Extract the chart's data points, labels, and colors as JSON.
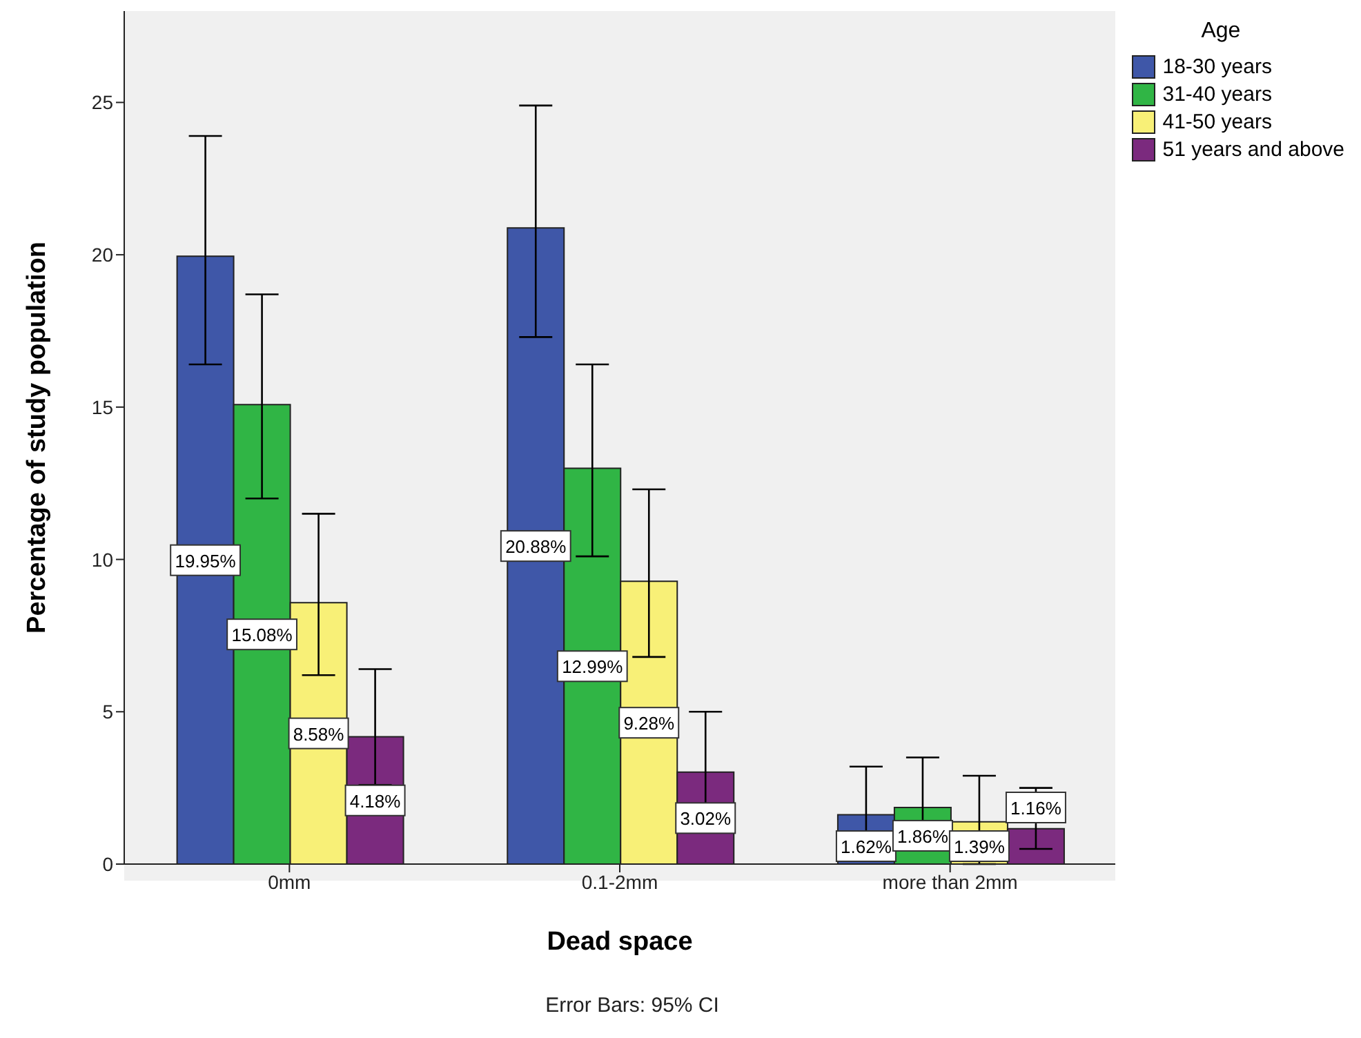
{
  "chart_data": {
    "type": "bar",
    "xlabel": "Dead space",
    "ylabel": "Percentage of study population",
    "legend_title": "Age",
    "categories": [
      "0mm",
      "0.1-2mm",
      "more than 2mm"
    ],
    "series": [
      {
        "name": "18-30 years",
        "color": "#3f57a8",
        "values": [
          19.95,
          20.88,
          1.62
        ],
        "value_labels": [
          "19.95%",
          "20.88%",
          "1.62%"
        ],
        "errors": [
          [
            16.4,
            23.9
          ],
          [
            17.3,
            24.9
          ],
          [
            0.1,
            3.2
          ]
        ]
      },
      {
        "name": "31-40 years",
        "color": "#30b545",
        "values": [
          15.08,
          12.99,
          1.86
        ],
        "value_labels": [
          "15.08%",
          "12.99%",
          "1.86%"
        ],
        "errors": [
          [
            12.0,
            18.7
          ],
          [
            10.1,
            16.4
          ],
          [
            0.9,
            3.5
          ]
        ]
      },
      {
        "name": "41-50 years",
        "color": "#f8f077",
        "values": [
          8.58,
          9.28,
          1.39
        ],
        "value_labels": [
          "8.58%",
          "9.28%",
          "1.39%"
        ],
        "errors": [
          [
            6.2,
            11.5
          ],
          [
            6.8,
            12.3
          ],
          [
            0.0,
            2.9
          ]
        ]
      },
      {
        "name": "51 years and above",
        "color": "#7b2a7e",
        "values": [
          4.18,
          3.02,
          1.16
        ],
        "value_labels": [
          "4.18%",
          "3.02%",
          "1.16%"
        ],
        "errors": [
          [
            2.6,
            6.4
          ],
          [
            1.1,
            5.0
          ],
          [
            0.5,
            2.5
          ]
        ]
      }
    ],
    "ylim": [
      0,
      28
    ],
    "yticks": [
      0,
      5,
      10,
      15,
      20,
      25
    ],
    "legend": "top right",
    "annotations": [
      "Error Bars: 95% CI"
    ]
  }
}
